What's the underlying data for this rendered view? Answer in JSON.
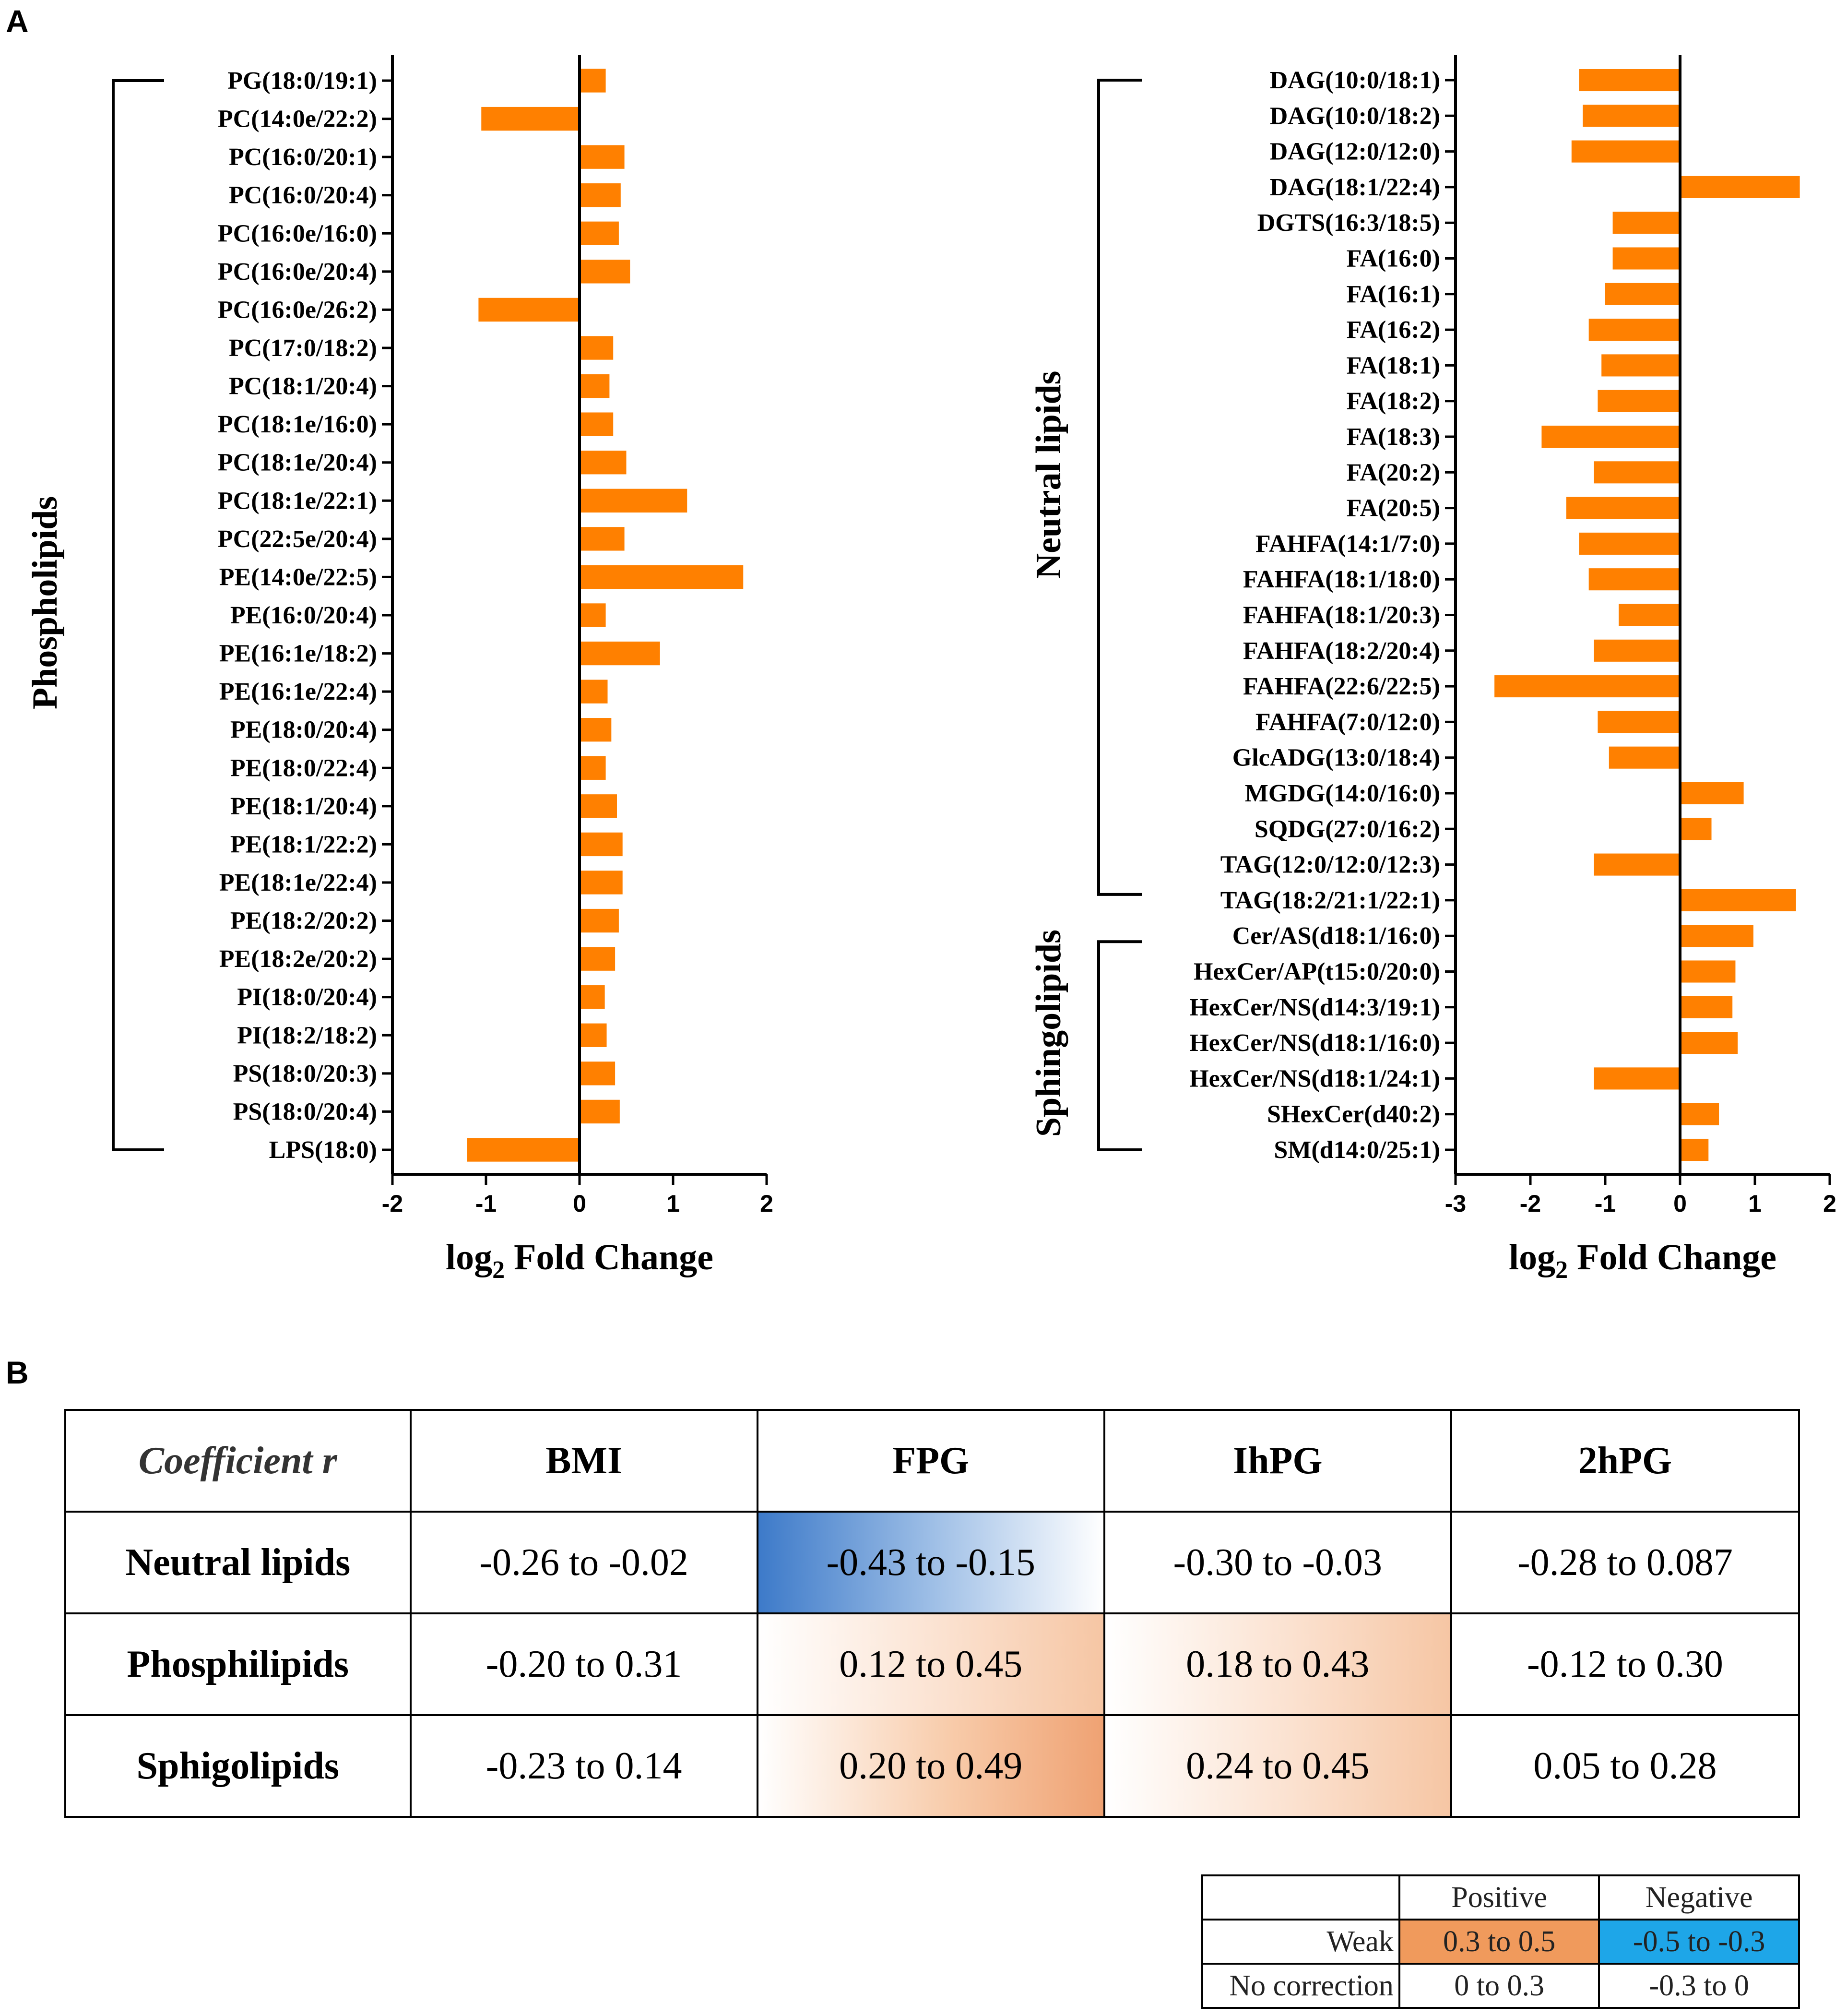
{
  "panel_labels": {
    "a": "A",
    "b": "B"
  },
  "colors": {
    "bar": "#FF8000",
    "axis": "#000000",
    "weak_positive": "#F09A5C",
    "weak_negative": "#1EA6E8",
    "corr_negative": "#3A78C8",
    "corr_positive": "#F2A878"
  },
  "chart_data": [
    {
      "type": "bar",
      "orientation": "horizontal",
      "groups": [
        {
          "name": "Phospholipids",
          "from": 0,
          "to": 28
        }
      ],
      "categories": [
        "PG(18:0/19:1)",
        "PC(14:0e/22:2)",
        "PC(16:0/20:1)",
        "PC(16:0/20:4)",
        "PC(16:0e/16:0)",
        "PC(16:0e/20:4)",
        "PC(16:0e/26:2)",
        "PC(17:0/18:2)",
        "PC(18:1/20:4)",
        "PC(18:1e/16:0)",
        "PC(18:1e/20:4)",
        "PC(18:1e/22:1)",
        "PC(22:5e/20:4)",
        "PE(14:0e/22:5)",
        "PE(16:0/20:4)",
        "PE(16:1e/18:2)",
        "PE(16:1e/22:4)",
        "PE(18:0/20:4)",
        "PE(18:0/22:4)",
        "PE(18:1/20:4)",
        "PE(18:1/22:2)",
        "PE(18:1e/22:4)",
        "PE(18:2/20:2)",
        "PE(18:2e/20:2)",
        "PI(18:0/20:4)",
        "PI(18:2/18:2)",
        "PS(18:0/20:3)",
        "PS(18:0/20:4)",
        "LPS(18:0)"
      ],
      "values": [
        0.28,
        -1.05,
        0.48,
        0.44,
        0.42,
        0.54,
        -1.08,
        0.36,
        0.32,
        0.36,
        0.5,
        1.15,
        0.48,
        1.75,
        0.28,
        0.86,
        0.3,
        0.34,
        0.28,
        0.4,
        0.46,
        0.46,
        0.42,
        0.38,
        0.27,
        0.29,
        0.38,
        0.43,
        -1.2
      ],
      "xlim": [
        -2,
        2
      ],
      "xticks": [
        "-2",
        "-1",
        "0",
        "1",
        "2"
      ],
      "xlabel": {
        "main": "log",
        "sub": "2",
        "rest": " Fold Change"
      }
    },
    {
      "type": "bar",
      "orientation": "horizontal",
      "groups": [
        {
          "name": "Neutral lipids",
          "from": 0,
          "to": 23
        },
        {
          "name": "Sphingolipids",
          "from": 24,
          "to": 30
        }
      ],
      "categories": [
        "DAG(10:0/18:1)",
        "DAG(10:0/18:2)",
        "DAG(12:0/12:0)",
        "DAG(18:1/22:4)",
        "DGTS(16:3/18:5)",
        "FA(16:0)",
        "FA(16:1)",
        "FA(16:2)",
        "FA(18:1)",
        "FA(18:2)",
        "FA(18:3)",
        "FA(20:2)",
        "FA(20:5)",
        "FAHFA(14:1/7:0)",
        "FAHFA(18:1/18:0)",
        "FAHFA(18:1/20:3)",
        "FAHFA(18:2/20:4)",
        "FAHFA(22:6/22:5)",
        "FAHFA(7:0/12:0)",
        "GlcADG(13:0/18:4)",
        "MGDG(14:0/16:0)",
        "SQDG(27:0/16:2)",
        "TAG(12:0/12:0/12:3)",
        "TAG(18:2/21:1/22:1)",
        "Cer/AS(d18:1/16:0)",
        "HexCer/AP(t15:0/20:0)",
        "HexCer/NS(d14:3/19:1)",
        "HexCer/NS(d18:1/16:0)",
        "HexCer/NS(d18:1/24:1)",
        "SHexCer(d40:2)",
        "SM(d14:0/25:1)"
      ],
      "values": [
        -1.35,
        -1.3,
        -1.45,
        1.6,
        -0.9,
        -0.9,
        -1.0,
        -1.22,
        -1.05,
        -1.1,
        -1.85,
        -1.15,
        -1.52,
        -1.35,
        -1.22,
        -0.82,
        -1.15,
        -2.48,
        -1.1,
        -0.95,
        0.85,
        0.42,
        -1.15,
        1.55,
        0.98,
        0.74,
        0.7,
        0.77,
        -1.15,
        0.52,
        0.38
      ],
      "xlim": [
        -3,
        2
      ],
      "xticks": [
        "-3",
        "-2",
        "-1",
        "0",
        "1",
        "2"
      ],
      "xlabel": {
        "main": "log",
        "sub": "2",
        "rest": " Fold Change"
      }
    }
  ],
  "correlation_table": {
    "corner": "Coefficient r",
    "columns": [
      "BMI",
      "FPG",
      "IhPG",
      "2hPG"
    ],
    "rows": [
      {
        "label": "Neutral lipids",
        "cells": [
          "-0.26 to -0.02",
          "-0.43 to -0.15",
          "-0.30 to -0.03",
          "-0.28 to 0.087"
        ],
        "shade": [
          "none",
          "negative",
          "none",
          "none"
        ]
      },
      {
        "label": "Phosphilipids",
        "cells": [
          "-0.20 to 0.31",
          "0.12 to 0.45",
          "0.18 to 0.43",
          "-0.12 to 0.30"
        ],
        "shade": [
          "none",
          "positive-light",
          "positive-light",
          "none"
        ]
      },
      {
        "label": "Sphigolipids",
        "cells": [
          "-0.23 to 0.14",
          "0.20 to 0.49",
          "0.24 to 0.45",
          "0.05 to 0.28"
        ],
        "shade": [
          "none",
          "positive",
          "positive-light",
          "none"
        ]
      }
    ]
  },
  "legend_table": {
    "columns": [
      "Positive",
      "Negative"
    ],
    "rows": [
      {
        "label": "Weak",
        "positive": "0.3 to 0.5",
        "negative": "-0.5 to -0.3"
      },
      {
        "label": "No correction",
        "positive": "0 to 0.3",
        "negative": "-0.3 to 0"
      }
    ]
  }
}
